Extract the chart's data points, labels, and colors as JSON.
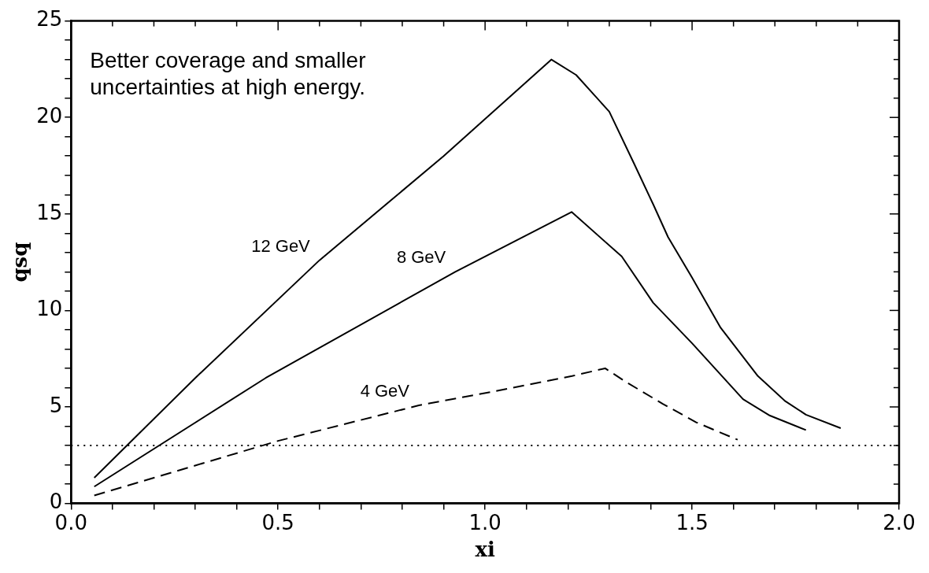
{
  "chart_data": {
    "type": "line",
    "xlabel": "xi",
    "ylabel": "qsq",
    "annotations": [
      "Better coverage and smaller uncertainties at high energy."
    ],
    "series": [
      {
        "name": "12 GeV",
        "color": "#000000",
        "line_style": "solid",
        "x": [
          0.056,
          0.3,
          0.6,
          0.9,
          1.16,
          1.22,
          1.3,
          1.36,
          1.406,
          1.442,
          1.5,
          1.569,
          1.659,
          1.725,
          1.775,
          1.859
        ],
        "values": [
          1.33,
          6.5,
          12.6,
          18.0,
          23.0,
          22.2,
          20.3,
          17.6,
          15.5,
          13.8,
          11.7,
          9.1,
          6.6,
          5.3,
          4.6,
          3.9
        ]
      },
      {
        "name": "8 GeV",
        "color": "#000000",
        "line_style": "solid",
        "x": [
          0.056,
          0.47,
          0.928,
          1.209,
          1.33,
          1.406,
          1.5,
          1.623,
          1.688,
          1.775
        ],
        "values": [
          0.87,
          6.5,
          12.0,
          15.1,
          12.8,
          10.4,
          8.3,
          5.4,
          4.55,
          3.8
        ]
      },
      {
        "name": "4 GeV",
        "color": "#000000",
        "line_style": "dashed",
        "x": [
          0.056,
          0.5,
          0.84,
          1.02,
          1.21,
          1.29,
          1.34,
          1.43,
          1.51,
          1.61
        ],
        "values": [
          0.41,
          3.24,
          5.08,
          5.8,
          6.6,
          7.0,
          6.3,
          5.15,
          4.2,
          3.3
        ]
      }
    ],
    "ref_lines": [
      {
        "axis": "y",
        "value": 3,
        "line_style": "dotted",
        "color": "#000000"
      }
    ],
    "xlim": [
      0,
      2
    ],
    "xticks": [
      {
        "value": 0,
        "label": "0.0"
      },
      {
        "value": 0.1,
        "label": null
      },
      {
        "value": 0.2,
        "label": null
      },
      {
        "value": 0.3,
        "label": null
      },
      {
        "value": 0.4,
        "label": null
      },
      {
        "value": 0.5,
        "label": "0.5"
      },
      {
        "value": 0.6,
        "label": null
      },
      {
        "value": 0.7,
        "label": null
      },
      {
        "value": 0.8,
        "label": null
      },
      {
        "value": 0.9,
        "label": null
      },
      {
        "value": 1,
        "label": "1.0"
      },
      {
        "value": 1.1,
        "label": null
      },
      {
        "value": 1.2,
        "label": null
      },
      {
        "value": 1.3,
        "label": null
      },
      {
        "value": 1.4,
        "label": null
      },
      {
        "value": 1.5,
        "label": "1.5"
      },
      {
        "value": 1.6,
        "label": null
      },
      {
        "value": 1.7,
        "label": null
      },
      {
        "value": 1.8,
        "label": null
      },
      {
        "value": 1.9,
        "label": null
      },
      {
        "value": 2,
        "label": "2.0"
      }
    ],
    "ylim": [
      0,
      25
    ],
    "yticks": [
      0,
      {
        "value": 1,
        "label": null
      },
      {
        "value": 2,
        "label": null
      },
      {
        "value": 3,
        "label": null
      },
      {
        "value": 4,
        "label": null
      },
      5,
      {
        "value": 6,
        "label": null
      },
      {
        "value": 7,
        "label": null
      },
      {
        "value": 8,
        "label": null
      },
      {
        "value": 9,
        "label": null
      },
      10,
      {
        "value": 11,
        "label": null
      },
      {
        "value": 12,
        "label": null
      },
      {
        "value": 13,
        "label": null
      },
      {
        "value": 14,
        "label": null
      },
      15,
      {
        "value": 16,
        "label": null
      },
      {
        "value": 17,
        "label": null
      },
      {
        "value": 18,
        "label": null
      },
      {
        "value": 19,
        "label": null
      },
      20,
      {
        "value": 21,
        "label": null
      },
      {
        "value": 22,
        "label": null
      },
      {
        "value": 23,
        "label": null
      },
      {
        "value": 24,
        "label": null
      },
      25
    ],
    "grid": false,
    "legend": false,
    "marker": "none"
  }
}
